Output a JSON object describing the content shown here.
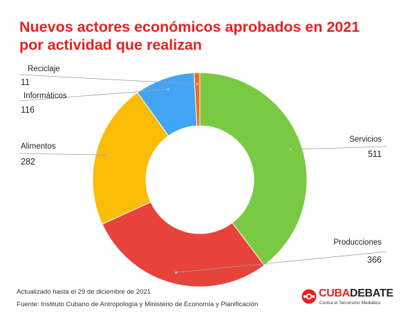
{
  "title_lines": [
    "Nuevos actores económicos aprobados en 2021",
    "por actividad que realizan"
  ],
  "chart_data": {
    "type": "pie",
    "variant": "donut",
    "categories": [
      "Servicios",
      "Producciones",
      "Alimentos",
      "Informáticos",
      "Reciclaje"
    ],
    "values": [
      511,
      366,
      282,
      116,
      11
    ],
    "colors": [
      "#7ac943",
      "#e8433a",
      "#fbbc05",
      "#42a5f5",
      "#f26b1d"
    ],
    "value_labels": [
      "511",
      "366",
      "282",
      "116",
      "11"
    ]
  },
  "footnotes": {
    "updated": "Actualizado hasta el 29 de diciembre de 2021",
    "source": "Fuente: Instituto Cubano de Antropología y Ministerio de Economía y Planificación"
  },
  "logo": {
    "part1": "CUBA",
    "part2": "DEBATE",
    "tagline": "Contra el Terrorismo Mediático",
    "icon": "cubadebate-mark-icon",
    "accent": "#e8201f"
  }
}
